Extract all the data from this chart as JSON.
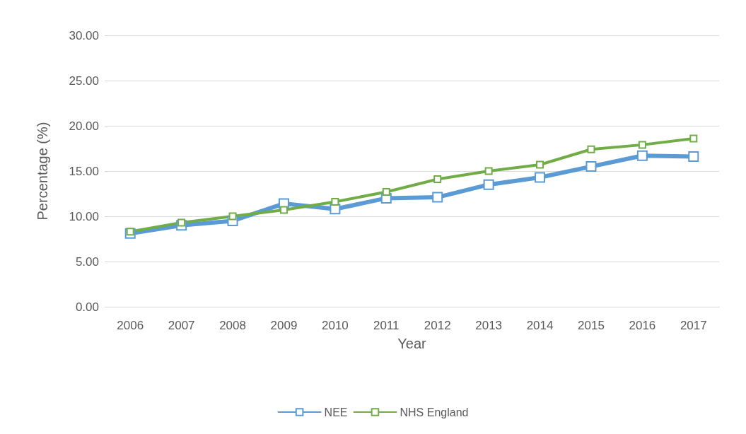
{
  "chart_data": {
    "type": "line",
    "xlabel": "Year",
    "ylabel": "Percentage (%)",
    "categories": [
      "2006",
      "2007",
      "2008",
      "2009",
      "2010",
      "2011",
      "2012",
      "2013",
      "2014",
      "2015",
      "2016",
      "2017"
    ],
    "series": [
      {
        "name": "NEE",
        "color": "#5b9bd5",
        "values": [
          8.1,
          9.0,
          9.5,
          11.4,
          10.8,
          12.0,
          12.1,
          13.5,
          14.3,
          15.5,
          16.7,
          16.6
        ]
      },
      {
        "name": "NHS England",
        "color": "#70ad47",
        "values": [
          8.3,
          9.3,
          10.0,
          10.7,
          11.6,
          12.7,
          14.1,
          15.0,
          15.7,
          17.4,
          17.9,
          18.6
        ]
      }
    ],
    "ylim": [
      0,
      30
    ],
    "yticks": [
      {
        "value": 0,
        "label": "0.00"
      },
      {
        "value": 5,
        "label": "5.00"
      },
      {
        "value": 10,
        "label": "10.00"
      },
      {
        "value": 15,
        "label": "15.00"
      },
      {
        "value": 20,
        "label": "20.00"
      },
      {
        "value": 25,
        "label": "25.00"
      },
      {
        "value": 30,
        "label": "30.00"
      }
    ],
    "grid": "y",
    "legend": "bottom",
    "marker": "square",
    "line_style": "solid"
  }
}
